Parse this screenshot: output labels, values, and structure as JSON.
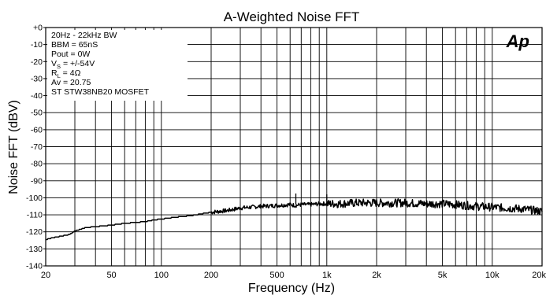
{
  "chart_data": {
    "type": "line",
    "title": "A-Weighted Noise FFT",
    "xlabel": "Frequency (Hz)",
    "ylabel": "Noise FFT (dBV)",
    "x_scale": "log",
    "xlim": [
      20,
      20000
    ],
    "ylim": [
      -140,
      0
    ],
    "grid": true,
    "x_ticks": [
      {
        "value": 20,
        "label": "20"
      },
      {
        "value": 50,
        "label": "50"
      },
      {
        "value": 100,
        "label": "100"
      },
      {
        "value": 200,
        "label": "200"
      },
      {
        "value": 500,
        "label": "500"
      },
      {
        "value": 1000,
        "label": "1k"
      },
      {
        "value": 2000,
        "label": "2k"
      },
      {
        "value": 5000,
        "label": "5k"
      },
      {
        "value": 10000,
        "label": "10k"
      },
      {
        "value": 20000,
        "label": "20k"
      }
    ],
    "y_ticks": [
      {
        "value": 0,
        "label": "+0"
      },
      {
        "value": -10,
        "label": "-10"
      },
      {
        "value": -20,
        "label": "-20"
      },
      {
        "value": -30,
        "label": "-30"
      },
      {
        "value": -40,
        "label": "-40"
      },
      {
        "value": -50,
        "label": "-50"
      },
      {
        "value": -60,
        "label": "-60"
      },
      {
        "value": -70,
        "label": "-70"
      },
      {
        "value": -80,
        "label": "-80"
      },
      {
        "value": -90,
        "label": "-90"
      },
      {
        "value": -100,
        "label": "-100"
      },
      {
        "value": -110,
        "label": "-110"
      },
      {
        "value": -120,
        "label": "-120"
      },
      {
        "value": -130,
        "label": "-130"
      },
      {
        "value": -140,
        "label": "-140"
      }
    ],
    "annotations": {
      "lines": [
        {
          "text": "20Hz - 22kHz BW"
        },
        {
          "text": "BBM = 65nS"
        },
        {
          "text": "Pout = 0W"
        },
        {
          "text": "V",
          "sub": "S",
          "rest": " = +/-54V"
        },
        {
          "text": "R",
          "sub": "L",
          "rest": " = 4Ω"
        },
        {
          "text": "Av = 20.75"
        },
        {
          "text": "ST STW38NB20 MOSFET"
        }
      ]
    },
    "logo": "Ap",
    "series": [
      {
        "color": "#000000",
        "x": [
          20,
          22,
          25,
          28,
          30,
          35,
          40,
          45,
          50,
          60,
          70,
          80,
          90,
          100,
          120,
          150,
          200,
          250,
          300,
          350,
          400,
          500,
          600,
          650,
          700,
          800,
          900,
          1000,
          1200,
          1500,
          2000,
          2500,
          3000,
          4000,
          5000,
          6000,
          7000,
          8000,
          10000,
          12000,
          15000,
          20000
        ],
        "y": [
          -124.5,
          -123.5,
          -122.5,
          -121.5,
          -119.5,
          -117.5,
          -117,
          -116.5,
          -116,
          -115,
          -114.5,
          -114,
          -113,
          -112.5,
          -111.5,
          -110.5,
          -108.5,
          -107.5,
          -106,
          -105.5,
          -105,
          -104.5,
          -104,
          -104.5,
          -104,
          -104,
          -103.5,
          -103.5,
          -103.5,
          -103,
          -103,
          -103,
          -103,
          -103.5,
          -103.5,
          -104,
          -104.5,
          -105,
          -105.5,
          -106,
          -106.5,
          -108
        ]
      }
    ]
  }
}
